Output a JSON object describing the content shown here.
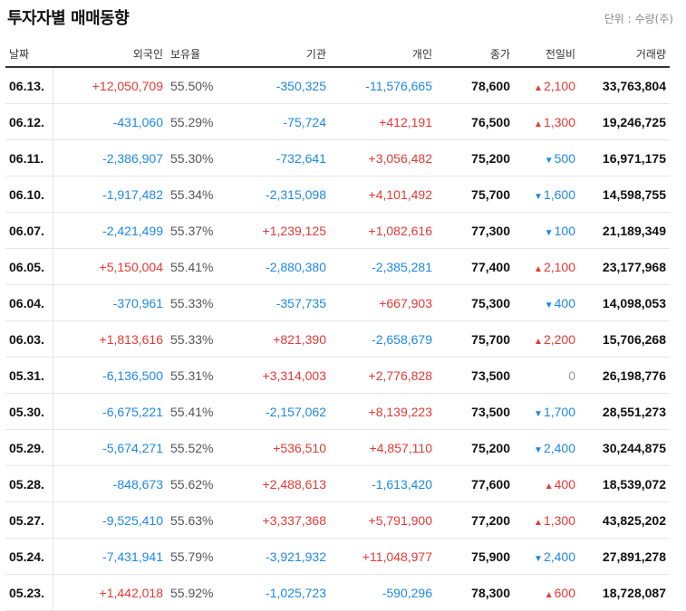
{
  "title": "투자자별 매매동향",
  "unit_label": "단위 : 수량(주)",
  "columns": [
    "날짜",
    "외국인",
    "보유율",
    "기관",
    "개인",
    "종가",
    "전일비",
    "거래량"
  ],
  "colors": {
    "up": "#e53935",
    "down": "#1e88e5",
    "flat": "#999999"
  },
  "rows": [
    {
      "date": "06.13.",
      "foreign": "+12,050,709",
      "foreign_dir": "up",
      "hold": "55.50%",
      "inst": "-350,325",
      "inst_dir": "down",
      "indiv": "-11,576,665",
      "indiv_dir": "down",
      "close": "78,600",
      "change": "2,100",
      "change_dir": "up",
      "volume": "33,763,804"
    },
    {
      "date": "06.12.",
      "foreign": "-431,060",
      "foreign_dir": "down",
      "hold": "55.29%",
      "inst": "-75,724",
      "inst_dir": "down",
      "indiv": "+412,191",
      "indiv_dir": "up",
      "close": "76,500",
      "change": "1,300",
      "change_dir": "up",
      "volume": "19,246,725"
    },
    {
      "date": "06.11.",
      "foreign": "-2,386,907",
      "foreign_dir": "down",
      "hold": "55.30%",
      "inst": "-732,641",
      "inst_dir": "down",
      "indiv": "+3,056,482",
      "indiv_dir": "up",
      "close": "75,200",
      "change": "500",
      "change_dir": "down",
      "volume": "16,971,175"
    },
    {
      "date": "06.10.",
      "foreign": "-1,917,482",
      "foreign_dir": "down",
      "hold": "55.34%",
      "inst": "-2,315,098",
      "inst_dir": "down",
      "indiv": "+4,101,492",
      "indiv_dir": "up",
      "close": "75,700",
      "change": "1,600",
      "change_dir": "down",
      "volume": "14,598,755"
    },
    {
      "date": "06.07.",
      "foreign": "-2,421,499",
      "foreign_dir": "down",
      "hold": "55.37%",
      "inst": "+1,239,125",
      "inst_dir": "up",
      "indiv": "+1,082,616",
      "indiv_dir": "up",
      "close": "77,300",
      "change": "100",
      "change_dir": "down",
      "volume": "21,189,349"
    },
    {
      "date": "06.05.",
      "foreign": "+5,150,004",
      "foreign_dir": "up",
      "hold": "55.41%",
      "inst": "-2,880,380",
      "inst_dir": "down",
      "indiv": "-2,385,281",
      "indiv_dir": "down",
      "close": "77,400",
      "change": "2,100",
      "change_dir": "up",
      "volume": "23,177,968"
    },
    {
      "date": "06.04.",
      "foreign": "-370,961",
      "foreign_dir": "down",
      "hold": "55.33%",
      "inst": "-357,735",
      "inst_dir": "down",
      "indiv": "+667,903",
      "indiv_dir": "up",
      "close": "75,300",
      "change": "400",
      "change_dir": "down",
      "volume": "14,098,053"
    },
    {
      "date": "06.03.",
      "foreign": "+1,813,616",
      "foreign_dir": "up",
      "hold": "55.33%",
      "inst": "+821,390",
      "inst_dir": "up",
      "indiv": "-2,658,679",
      "indiv_dir": "down",
      "close": "75,700",
      "change": "2,200",
      "change_dir": "up",
      "volume": "15,706,268"
    },
    {
      "date": "05.31.",
      "foreign": "-6,136,500",
      "foreign_dir": "down",
      "hold": "55.31%",
      "inst": "+3,314,003",
      "inst_dir": "up",
      "indiv": "+2,776,828",
      "indiv_dir": "up",
      "close": "73,500",
      "change": "0",
      "change_dir": "flat",
      "volume": "26,198,776"
    },
    {
      "date": "05.30.",
      "foreign": "-6,675,221",
      "foreign_dir": "down",
      "hold": "55.41%",
      "inst": "-2,157,062",
      "inst_dir": "down",
      "indiv": "+8,139,223",
      "indiv_dir": "up",
      "close": "73,500",
      "change": "1,700",
      "change_dir": "down",
      "volume": "28,551,273"
    },
    {
      "date": "05.29.",
      "foreign": "-5,674,271",
      "foreign_dir": "down",
      "hold": "55.52%",
      "inst": "+536,510",
      "inst_dir": "up",
      "indiv": "+4,857,110",
      "indiv_dir": "up",
      "close": "75,200",
      "change": "2,400",
      "change_dir": "down",
      "volume": "30,244,875"
    },
    {
      "date": "05.28.",
      "foreign": "-848,673",
      "foreign_dir": "down",
      "hold": "55.62%",
      "inst": "+2,488,613",
      "inst_dir": "up",
      "indiv": "-1,613,420",
      "indiv_dir": "down",
      "close": "77,600",
      "change": "400",
      "change_dir": "up",
      "volume": "18,539,072"
    },
    {
      "date": "05.27.",
      "foreign": "-9,525,410",
      "foreign_dir": "down",
      "hold": "55.63%",
      "inst": "+3,337,368",
      "inst_dir": "up",
      "indiv": "+5,791,900",
      "indiv_dir": "up",
      "close": "77,200",
      "change": "1,300",
      "change_dir": "up",
      "volume": "43,825,202"
    },
    {
      "date": "05.24.",
      "foreign": "-7,431,941",
      "foreign_dir": "down",
      "hold": "55.79%",
      "inst": "-3,921,932",
      "inst_dir": "down",
      "indiv": "+11,048,977",
      "indiv_dir": "up",
      "close": "75,900",
      "change": "2,400",
      "change_dir": "down",
      "volume": "27,891,278"
    },
    {
      "date": "05.23.",
      "foreign": "+1,442,018",
      "foreign_dir": "up",
      "hold": "55.92%",
      "inst": "-1,025,723",
      "inst_dir": "down",
      "indiv": "-590,296",
      "indiv_dir": "down",
      "close": "78,300",
      "change": "600",
      "change_dir": "up",
      "volume": "18,728,087"
    }
  ]
}
